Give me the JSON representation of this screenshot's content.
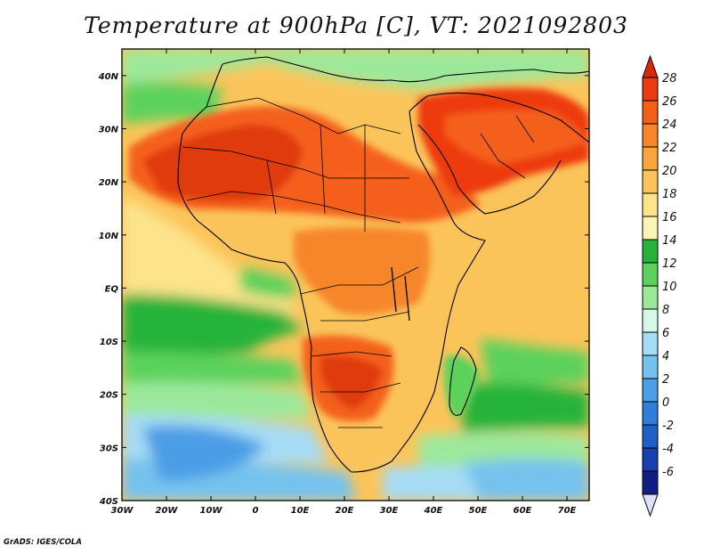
{
  "title": "Temperature at 900hPa [C], VT: 2021092803",
  "credit": "GrADS: IGES/COLA",
  "map": {
    "lon_labels": [
      "30W",
      "20W",
      "10W",
      "0",
      "10E",
      "20E",
      "30E",
      "40E",
      "50E",
      "60E",
      "70E"
    ],
    "lat_labels": [
      "40N",
      "30N",
      "20N",
      "10N",
      "EQ",
      "10S",
      "20S",
      "30S",
      "40S"
    ],
    "lon_range": [
      -30,
      75
    ],
    "lat_range": [
      -40,
      45
    ]
  },
  "colorbar": {
    "labels": [
      "28",
      "26",
      "24",
      "22",
      "20",
      "18",
      "16",
      "14",
      "12",
      "10",
      "8",
      "6",
      "4",
      "2",
      "0",
      "-2",
      "-4",
      "-6"
    ],
    "colors": [
      "#ed3a10",
      "#f4601a",
      "#f7862a",
      "#f9a63d",
      "#fbc45a",
      "#fce38c",
      "#fbf5b4",
      "#27b33a",
      "#5cd25c",
      "#9be89b",
      "#d6f8e8",
      "#a6dcf5",
      "#76c2ee",
      "#4c9ee6",
      "#2f7fda",
      "#1f5fc8",
      "#1a3fb0",
      "#0f1f82"
    ],
    "over_color": "#d62a0a",
    "under_color": "#dfe2f7"
  }
}
